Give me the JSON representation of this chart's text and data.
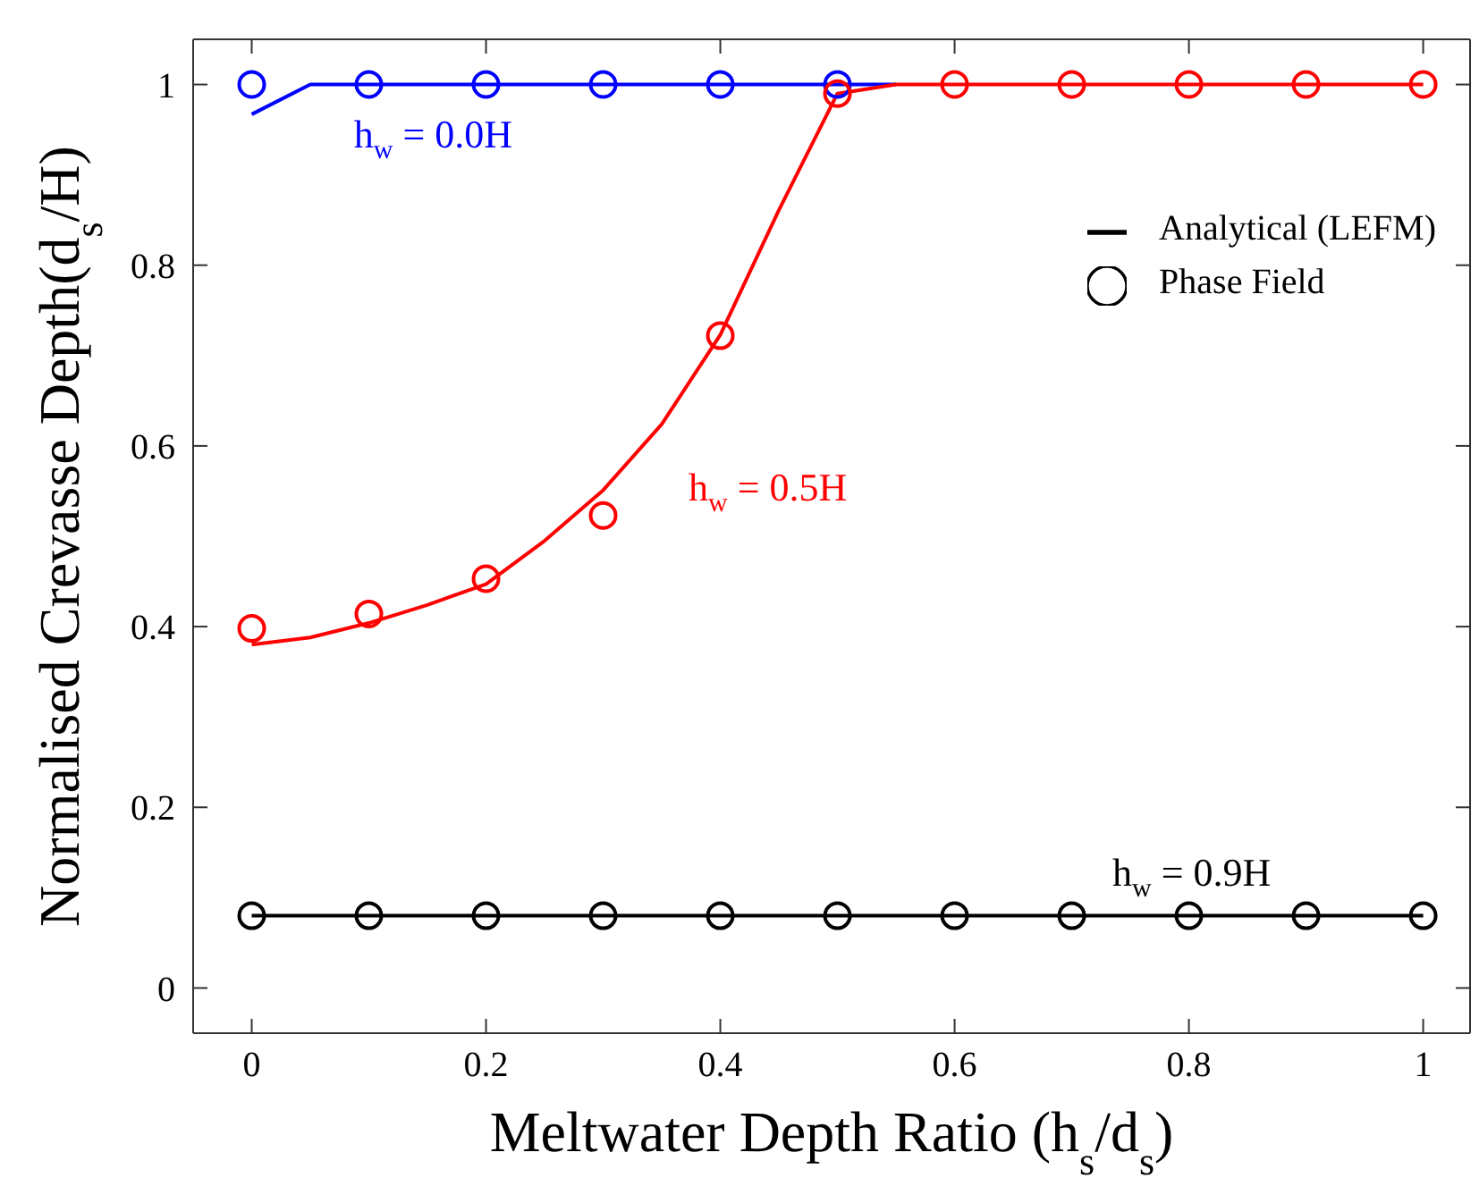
{
  "chart_data": {
    "type": "line",
    "xlabel": "Meltwater Depth Ratio (h$_{s}$/d$_{s}$)",
    "ylabel": "Normalised Crevasse Depth(d$_{s}$/H)",
    "xlim": [
      -0.05,
      1.04
    ],
    "ylim": [
      -0.05,
      1.05
    ],
    "xticks": [
      0,
      0.2,
      0.4,
      0.6,
      0.8,
      1
    ],
    "yticks": [
      0,
      0.2,
      0.4,
      0.6,
      0.8,
      1
    ],
    "grid": false,
    "legend": "top right",
    "series": [
      {
        "marker": "none",
        "color": "#0000ff",
        "x": [
          0,
          0.05,
          0.1,
          0.2,
          0.3,
          0.4,
          0.5,
          0.55
        ],
        "values": [
          0.967,
          1,
          1,
          1,
          1,
          1,
          1,
          1
        ]
      },
      {
        "marker": "none",
        "color": "#ff0000",
        "x": [
          0,
          0.05,
          0.1,
          0.15,
          0.2,
          0.25,
          0.3,
          0.35,
          0.4,
          0.45,
          0.5,
          0.55,
          0.6,
          0.7,
          0.8,
          0.9,
          1
        ],
        "values": [
          0.38,
          0.388,
          0.404,
          0.424,
          0.447,
          0.495,
          0.551,
          0.624,
          0.723,
          0.861,
          0.99,
          1,
          1,
          1,
          1,
          1,
          1
        ]
      },
      {
        "marker": "none",
        "name": "Analytical (LEFM)",
        "color": "#000000",
        "x": [
          0,
          0.1,
          0.2,
          0.3,
          0.4,
          0.5,
          0.6,
          0.7,
          0.8,
          0.9,
          1
        ],
        "values": [
          0.08,
          0.08,
          0.08,
          0.08,
          0.08,
          0.08,
          0.08,
          0.08,
          0.08,
          0.08,
          0.08
        ]
      },
      {
        "type": "scatter",
        "marker": "circle",
        "color": "#0000ff",
        "x": [
          0,
          0.1,
          0.2,
          0.3,
          0.4,
          0.5
        ],
        "values": [
          1,
          1,
          1,
          1,
          1,
          1
        ]
      },
      {
        "type": "scatter",
        "marker": "circle",
        "color": "#ff0000",
        "x": [
          0,
          0.1,
          0.2,
          0.3,
          0.4,
          0.5,
          0.6,
          0.7,
          0.8,
          0.9,
          1
        ],
        "values": [
          0.398,
          0.414,
          0.453,
          0.523,
          0.722,
          0.99,
          1,
          1,
          1,
          1,
          1
        ]
      },
      {
        "type": "scatter",
        "marker": "circle",
        "name": "Phase Field",
        "color": "#000000",
        "x": [
          0,
          0.1,
          0.2,
          0.3,
          0.4,
          0.5,
          0.6,
          0.7,
          0.8,
          0.9,
          1
        ],
        "values": [
          0.08,
          0.08,
          0.08,
          0.08,
          0.08,
          0.08,
          0.08,
          0.08,
          0.08,
          0.08,
          0.08
        ]
      }
    ],
    "annotations": [
      "h$_{w}$ = 0.0H",
      "h$_{w}$ = 0.5H",
      "h$_{w}$ = 0.9H"
    ]
  }
}
